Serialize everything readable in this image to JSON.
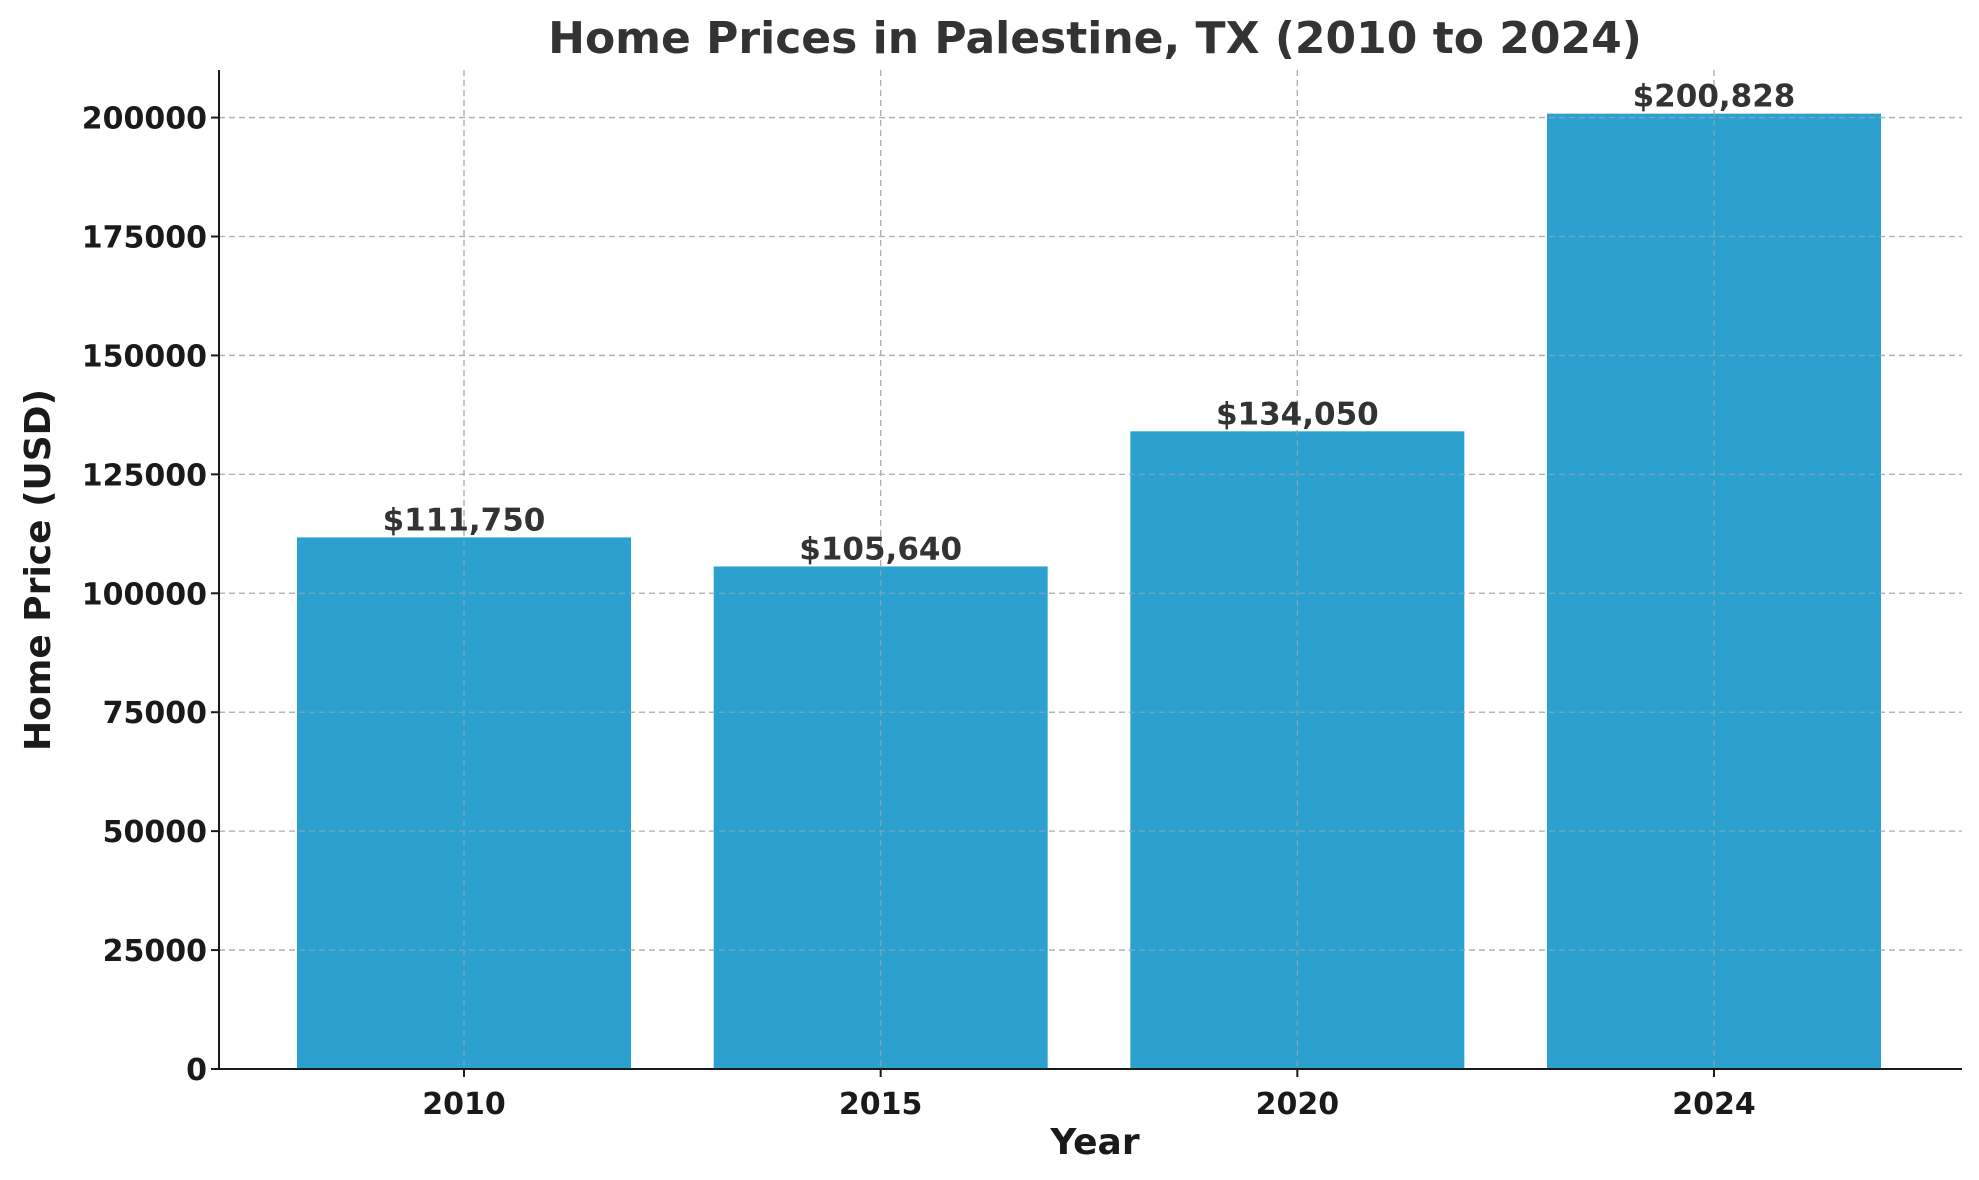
{
  "chart_data": {
    "type": "bar",
    "title": "Home Prices in Palestine, TX (2010 to 2024)",
    "xlabel": "Year",
    "ylabel": "Home Price (USD)",
    "categories": [
      "2010",
      "2015",
      "2020",
      "2024"
    ],
    "values": [
      111750,
      105640,
      134050,
      200828
    ],
    "data_labels": [
      "$111,750",
      "$105,640",
      "$134,050",
      "$200,828"
    ],
    "ylim": [
      0,
      210000
    ],
    "yticks": [
      0,
      25000,
      50000,
      75000,
      100000,
      125000,
      150000,
      175000,
      200000
    ],
    "ytick_labels": [
      "0",
      "25000",
      "50000",
      "75000",
      "100000",
      "125000",
      "150000",
      "175000",
      "200000"
    ],
    "grid": true,
    "bar_color": "#2ca1cf"
  }
}
